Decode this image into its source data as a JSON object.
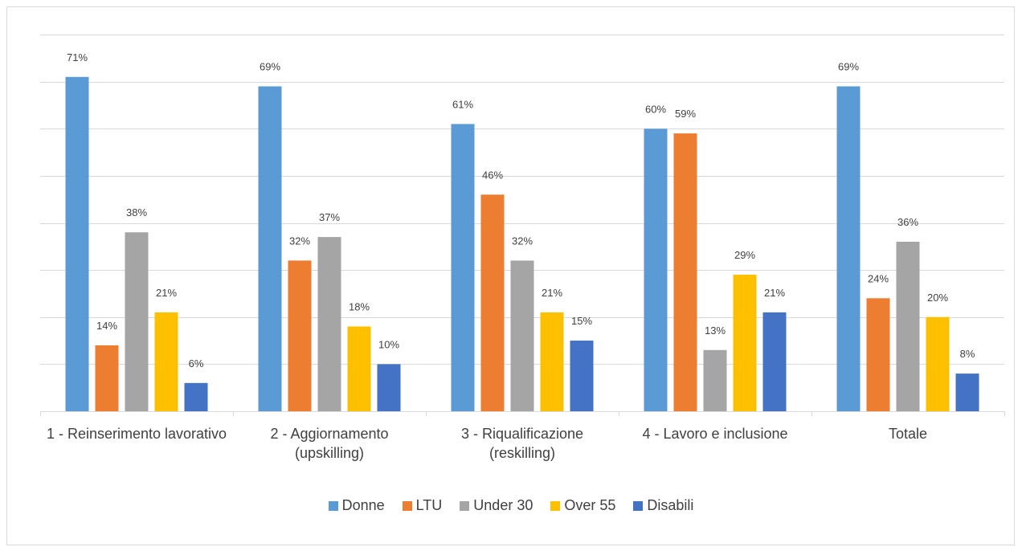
{
  "chart_data": {
    "type": "bar",
    "categories": [
      "1 - Reinserimento lavorativo",
      "2 - Aggiornamento (upskilling)",
      "3 - Riqualificazione (reskilling)",
      "4 - Lavoro e inclusione",
      "Totale"
    ],
    "series": [
      {
        "name": "Donne",
        "color": "#5b9bd5",
        "values": [
          71,
          69,
          61,
          60,
          69
        ],
        "value_labels": [
          "71%",
          "69%",
          "61%",
          "60%",
          "69%"
        ]
      },
      {
        "name": "LTU",
        "color": "#ed7d31",
        "values": [
          14,
          32,
          46,
          59,
          24
        ],
        "value_labels": [
          "14%",
          "32%",
          "46%",
          "59%",
          "24%"
        ]
      },
      {
        "name": "Under 30",
        "color": "#a5a5a5",
        "values": [
          38,
          37,
          32,
          13,
          36
        ],
        "value_labels": [
          "38%",
          "37%",
          "32%",
          "13%",
          "36%"
        ]
      },
      {
        "name": "Over 55",
        "color": "#ffc000",
        "values": [
          21,
          18,
          21,
          29,
          20
        ],
        "value_labels": [
          "21%",
          "18%",
          "21%",
          "29%",
          "20%"
        ]
      },
      {
        "name": "Disabili",
        "color": "#4472c4",
        "values": [
          6,
          10,
          15,
          21,
          8
        ],
        "value_labels": [
          "6%",
          "10%",
          "15%",
          "21%",
          "8%"
        ]
      }
    ],
    "ylim": [
      0,
      80
    ],
    "yticks": [
      0,
      10,
      20,
      30,
      40,
      50,
      60,
      70,
      80
    ],
    "grid": true,
    "legend": "bottom"
  }
}
